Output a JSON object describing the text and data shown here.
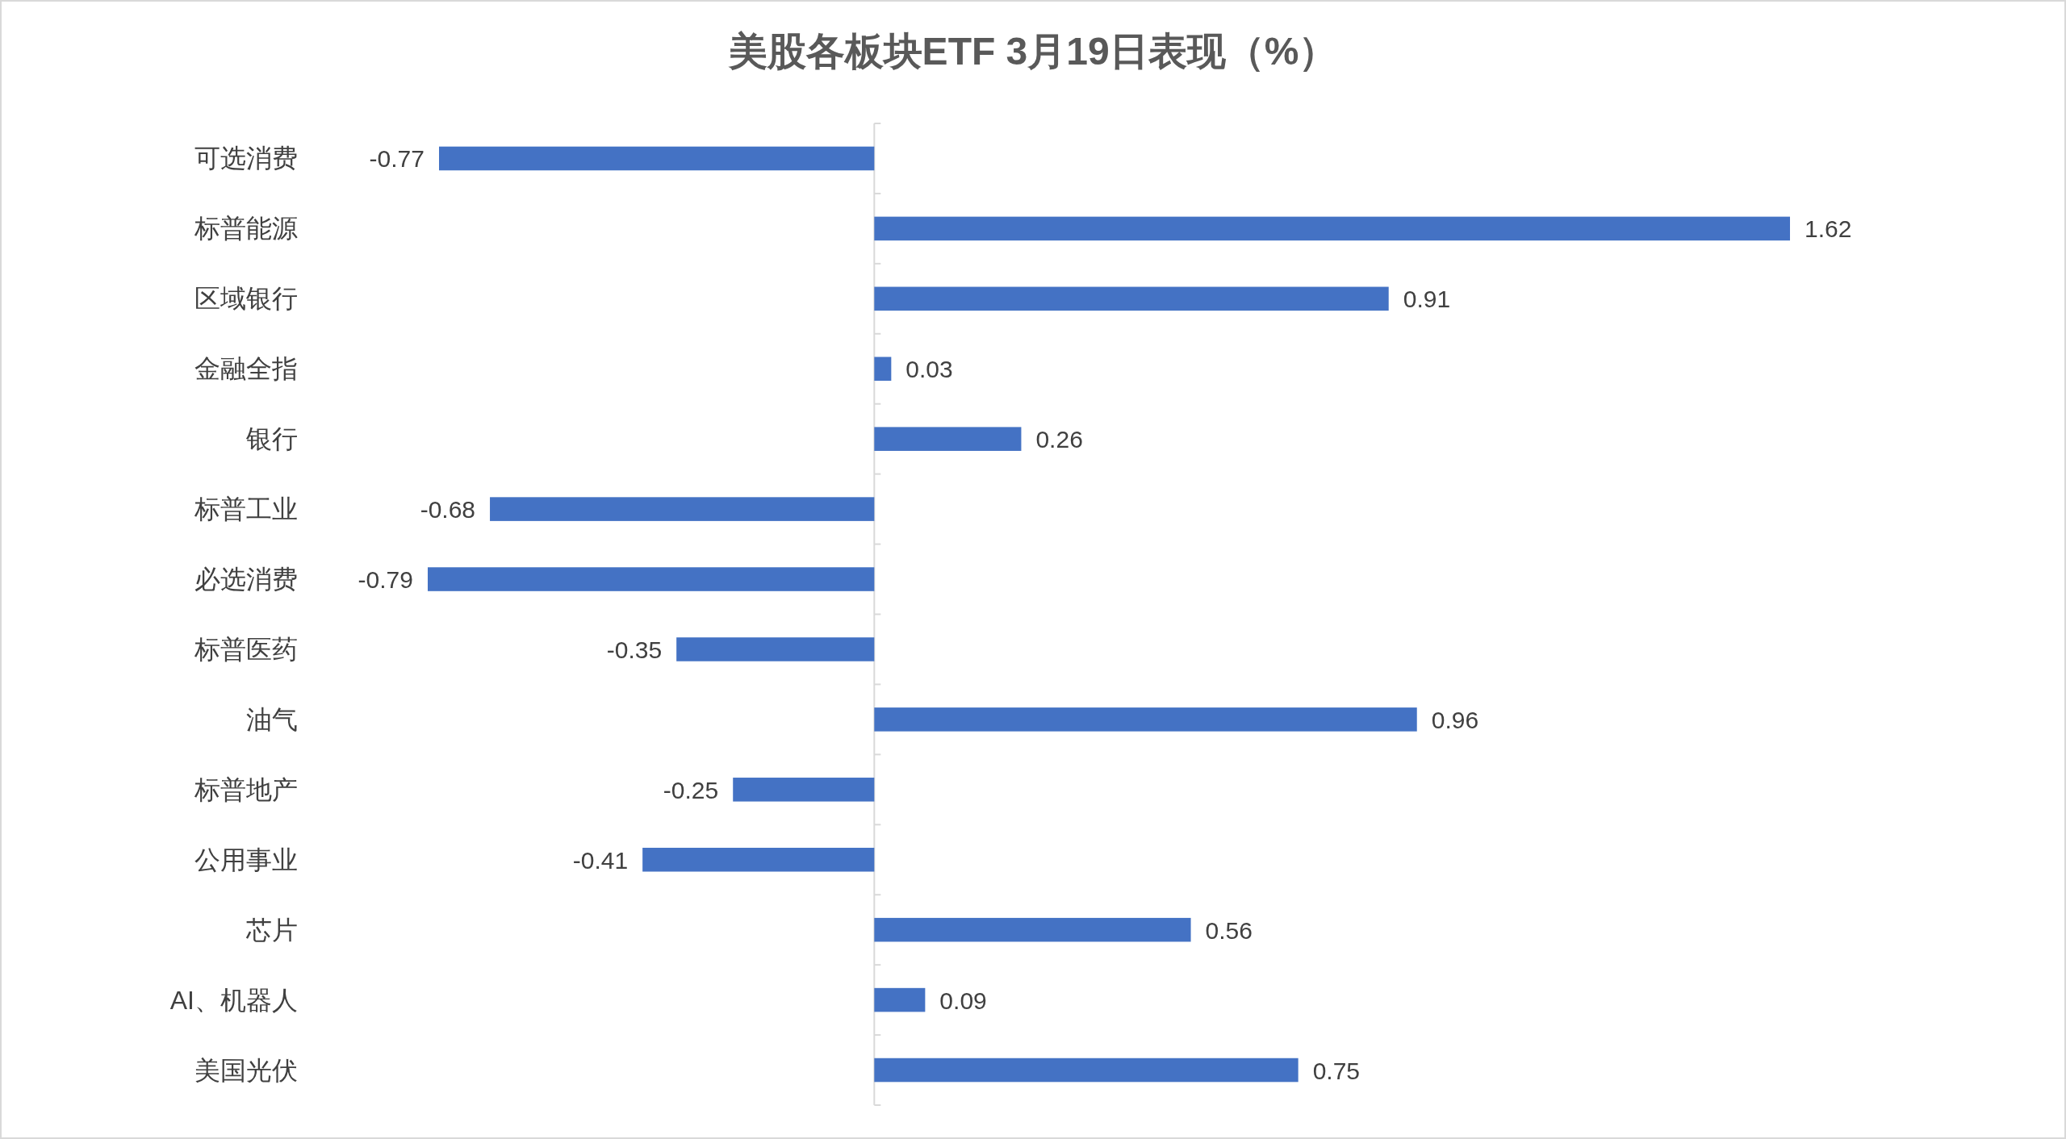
{
  "chart_data": {
    "type": "bar",
    "orientation": "horizontal",
    "title": "美股各板块ETF  3月19日表现（%）",
    "categories": [
      "可选消费",
      "标普能源",
      "区域银行",
      "金融全指",
      "银行",
      "标普工业",
      "必选消费",
      "标普医药",
      "油气",
      "标普地产",
      "公用事业",
      "芯片",
      "AI、机器人",
      "美国光伏"
    ],
    "values": [
      -0.77,
      1.62,
      0.91,
      0.03,
      0.26,
      -0.68,
      -0.79,
      -0.35,
      0.96,
      -0.25,
      -0.41,
      0.56,
      0.09,
      0.75
    ],
    "color": "#4472c4",
    "data_labels": true
  }
}
